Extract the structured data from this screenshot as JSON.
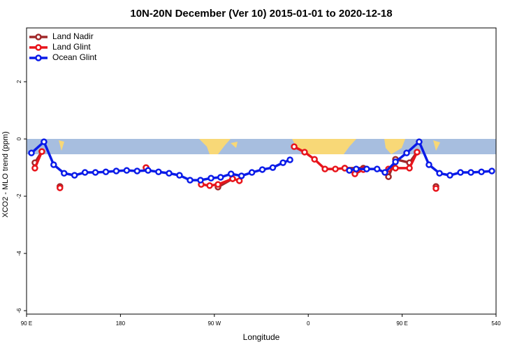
{
  "chart_data": {
    "type": "line",
    "title": "10N-20N December (Ver 10)   2015-01-01 to 2020-12-18",
    "x_label": "Longitude",
    "y_label": "XCO2 - MLO trend (ppm)",
    "xlim": [
      90,
      540
    ],
    "ylim": [
      -6.12,
      3.88
    ],
    "xticks": [
      {
        "value": 90,
        "label": "90 E"
      },
      180,
      {
        "value": 270,
        "label": "90 W"
      },
      {
        "value": 360,
        "label": "0"
      },
      {
        "value": 450,
        "label": "90 E"
      },
      540
    ],
    "yticks": [
      -6,
      -4,
      -2,
      0,
      2
    ],
    "legend": "top-left",
    "series": [
      {
        "name": "Land Nadir",
        "color": "#a0282a",
        "x": [
          98,
          104.7,
          null,
          122,
          null,
          204.5,
          null,
          273.5,
          287.5,
          null,
          395,
          412.8,
          null,
          436.9,
          443.6,
          457,
          464.3,
          null,
          482.4
        ],
        "values": [
          -0.83,
          -0.44,
          null,
          -1.66,
          null,
          -1.0,
          null,
          -1.68,
          -1.39,
          null,
          -1.02,
          -1.02,
          null,
          -1.32,
          -0.71,
          -0.83,
          -0.46,
          null,
          -1.66
        ]
      },
      {
        "name": "Land Glint",
        "color": "#e8141b",
        "x": [
          98,
          104.7,
          null,
          122,
          null,
          204.5,
          null,
          257.4,
          265.5,
          273.5,
          287.5,
          294,
          null,
          346.5,
          356.5,
          366,
          376,
          386,
          395,
          404.7,
          412.8,
          null,
          436.9,
          443.6,
          457,
          464.3,
          null,
          482.4
        ],
        "values": [
          -1.02,
          -0.44,
          null,
          -1.71,
          null,
          -1.0,
          null,
          -1.59,
          -1.63,
          -1.59,
          -1.39,
          -1.46,
          null,
          -0.27,
          -0.46,
          -0.71,
          -1.05,
          -1.05,
          -1.02,
          -1.22,
          -1.07,
          null,
          -1.05,
          -1.02,
          -1.02,
          -0.46,
          null,
          -1.73
        ]
      },
      {
        "name": "Ocean Glint",
        "color": "#0a1be8",
        "x": [
          94.7,
          106.7,
          116,
          126,
          136,
          146,
          156,
          166,
          176,
          186,
          196,
          206.5,
          216.5,
          226.6,
          236.6,
          246.7,
          256.7,
          266.8,
          276,
          286,
          296,
          306,
          316,
          326,
          335.8,
          342.5,
          null,
          399.4,
          406,
          416,
          426,
          433.5,
          443.6,
          454.3,
          466.3,
          475.7,
          485.8,
          495.8,
          505.9,
          515.9,
          526,
          536
        ],
        "values": [
          -0.49,
          -0.1,
          -0.9,
          -1.2,
          -1.27,
          -1.17,
          -1.17,
          -1.15,
          -1.12,
          -1.1,
          -1.12,
          -1.1,
          -1.15,
          -1.2,
          -1.27,
          -1.44,
          -1.44,
          -1.37,
          -1.34,
          -1.22,
          -1.29,
          -1.17,
          -1.07,
          -1.0,
          -0.83,
          -0.73,
          null,
          -1.1,
          -1.05,
          -1.05,
          -1.05,
          -1.17,
          -0.8,
          -0.49,
          -0.1,
          -0.9,
          -1.2,
          -1.27,
          -1.17,
          -1.17,
          -1.15,
          -1.12
        ]
      }
    ]
  }
}
